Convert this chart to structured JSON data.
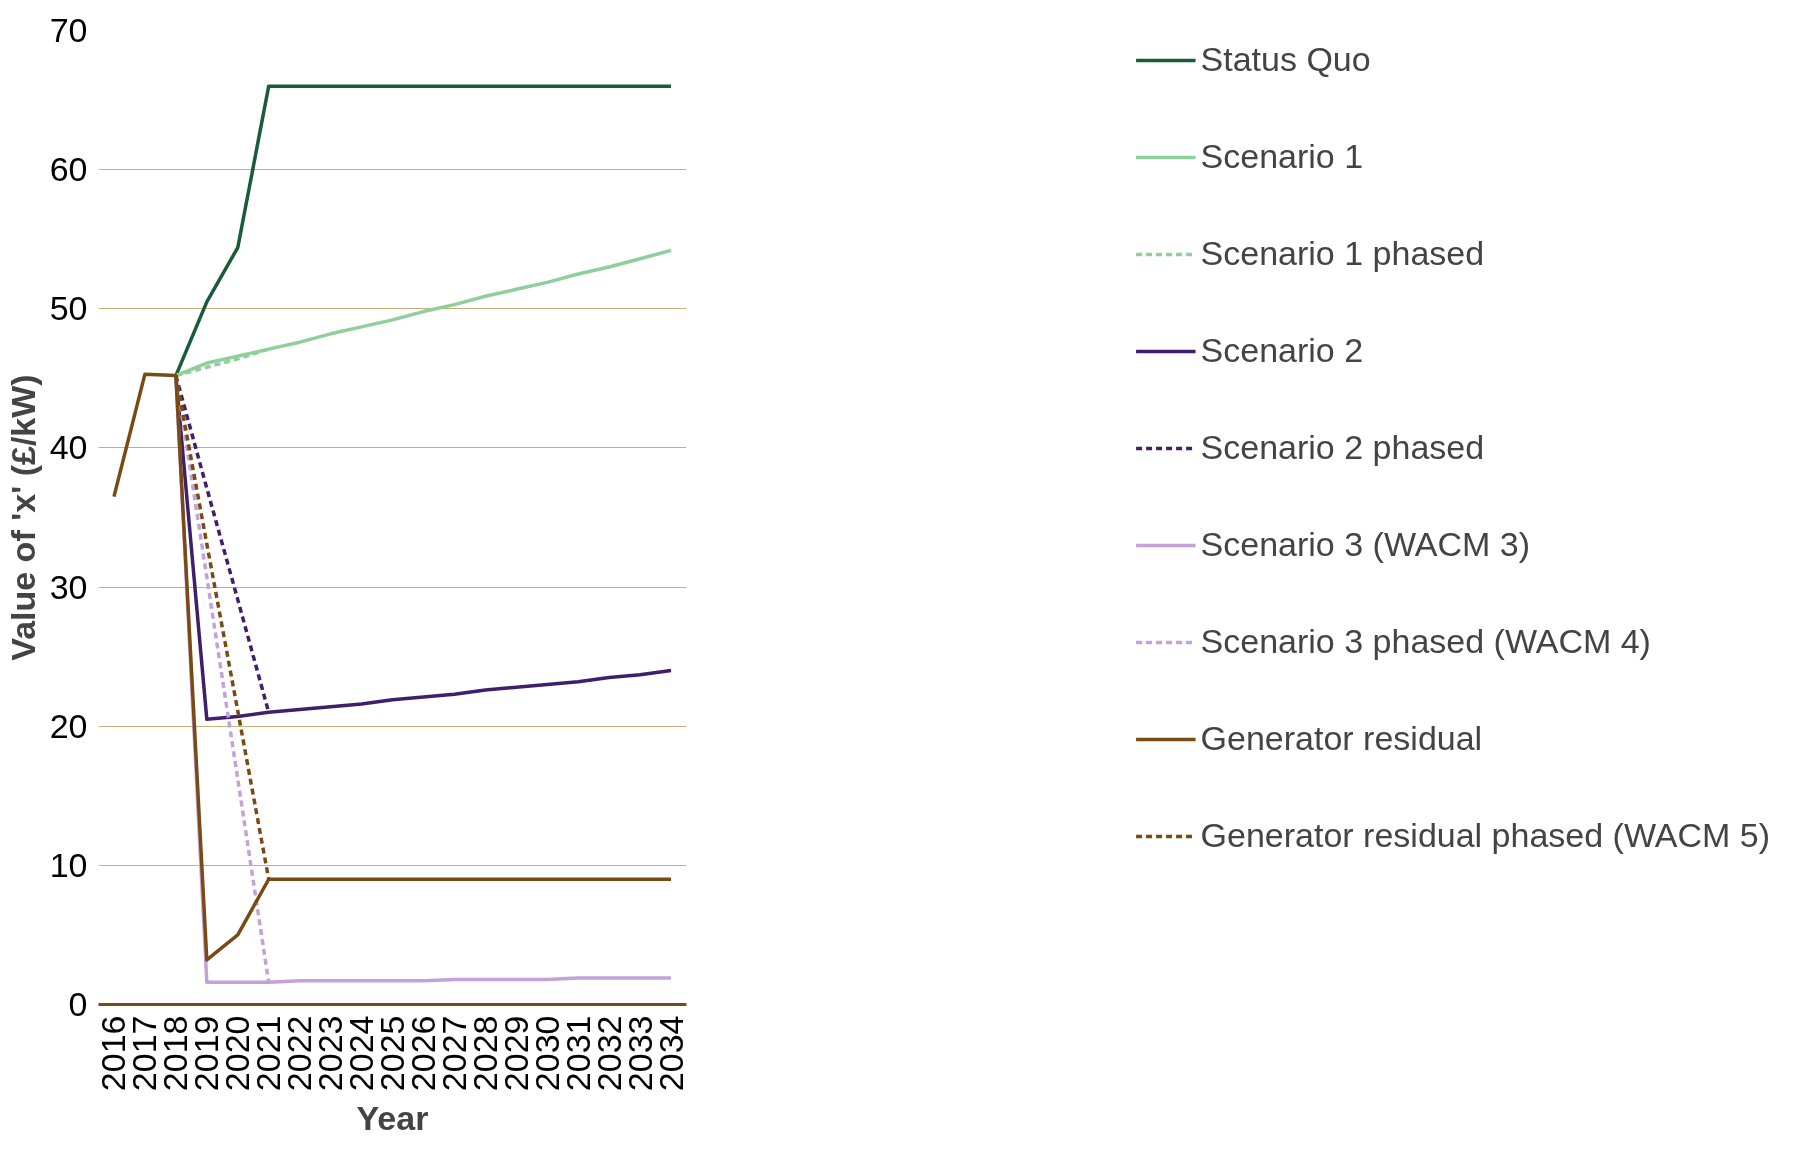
{
  "chart_data": {
    "type": "line",
    "xlabel": "Year",
    "ylabel": "Value of 'x' (£/kW)",
    "xlim": [
      2015.5,
      2034.5
    ],
    "xticks": [
      2016,
      2017,
      2018,
      2019,
      2020,
      2021,
      2022,
      2023,
      2024,
      2025,
      2026,
      2027,
      2028,
      2029,
      2030,
      2031,
      2032,
      2033,
      2034
    ],
    "ylim": [
      0,
      70
    ],
    "yticks": [
      0,
      10,
      20,
      30,
      40,
      50,
      60,
      70
    ],
    "grid": "y",
    "legend": "right",
    "marker": "none",
    "series": [
      {
        "name": "Status Quo",
        "color": "#1a5c38",
        "x": [
          2018,
          2019,
          2020,
          2021,
          2022,
          2023,
          2024,
          2025,
          2026,
          2027,
          2028,
          2029,
          2030,
          2031,
          2032,
          2033,
          2034
        ],
        "values": [
          45.2,
          50.5,
          54.4,
          66.0,
          66.0,
          66.0,
          66.0,
          66.0,
          66.0,
          66.0,
          66.0,
          66.0,
          66.0,
          66.0,
          66.0,
          66.0,
          66.0
        ]
      },
      {
        "name": "Scenario 1",
        "color": "#8fcf9b",
        "x": [
          2018,
          2019,
          2020,
          2021,
          2022,
          2023,
          2024,
          2025,
          2026,
          2027,
          2028,
          2029,
          2030,
          2031,
          2032,
          2033,
          2034
        ],
        "values": [
          45.2,
          46.1,
          46.6,
          47.1,
          47.6,
          48.2,
          48.7,
          49.2,
          49.8,
          50.3,
          50.9,
          51.4,
          51.9,
          52.5,
          53.0,
          53.6,
          54.2
        ]
      },
      {
        "name": "Scenario 1 phased",
        "color": "#8fcf9b",
        "line_style": "dashed",
        "x": [
          2018,
          2019,
          2020,
          2021
        ],
        "values": [
          45.2,
          45.8,
          46.4,
          47.1
        ]
      },
      {
        "name": "Scenario 2",
        "color": "#3f1f6b",
        "x": [
          2018,
          2019,
          2020,
          2021,
          2022,
          2023,
          2024,
          2025,
          2026,
          2027,
          2028,
          2029,
          2030,
          2031,
          2032,
          2033,
          2034
        ],
        "values": [
          45.2,
          20.5,
          20.7,
          21.0,
          21.2,
          21.4,
          21.6,
          21.9,
          22.1,
          22.3,
          22.6,
          22.8,
          23.0,
          23.2,
          23.5,
          23.7,
          24.0
        ]
      },
      {
        "name": "Scenario 2 phased",
        "color": "#3f1f6b",
        "line_style": "dashed",
        "x": [
          2018,
          2019,
          2020,
          2021
        ],
        "values": [
          45.2,
          37.1,
          29.1,
          21.0
        ]
      },
      {
        "name": "Scenario 3 (WACM 3)",
        "color": "#c3a2d9",
        "x": [
          2018,
          2019,
          2020,
          2021,
          2022,
          2023,
          2024,
          2025,
          2026,
          2027,
          2028,
          2029,
          2030,
          2031,
          2032,
          2033,
          2034
        ],
        "values": [
          45.2,
          1.6,
          1.6,
          1.6,
          1.7,
          1.7,
          1.7,
          1.7,
          1.7,
          1.8,
          1.8,
          1.8,
          1.8,
          1.9,
          1.9,
          1.9,
          1.9
        ]
      },
      {
        "name": "Scenario 3 phased (WACM 4)",
        "color": "#c3a2d9",
        "line_style": "dashed",
        "x": [
          2018,
          2019,
          2020,
          2021
        ],
        "values": [
          45.2,
          30.7,
          16.2,
          1.6
        ]
      },
      {
        "name": "Generator residual",
        "color": "#7a4a14",
        "x": [
          2016,
          2017,
          2018,
          2019,
          2020,
          2021,
          2022,
          2023,
          2024,
          2025,
          2026,
          2027,
          2028,
          2029,
          2030,
          2031,
          2032,
          2033,
          2034
        ],
        "values": [
          36.5,
          45.3,
          45.2,
          3.2,
          5.0,
          9.0,
          9.0,
          9.0,
          9.0,
          9.0,
          9.0,
          9.0,
          9.0,
          9.0,
          9.0,
          9.0,
          9.0,
          9.0,
          9.0
        ]
      },
      {
        "name": "Generator residual phased (WACM 5)",
        "color": "#7a4a14",
        "line_style": "dashed",
        "x": [
          2018,
          2019,
          2020,
          2021
        ],
        "values": [
          45.2,
          33.1,
          21.1,
          9.0
        ]
      }
    ]
  }
}
